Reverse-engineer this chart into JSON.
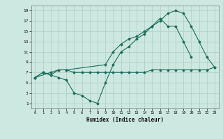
{
  "xlabel": "Humidex (Indice chaleur)",
  "bg_color": "#cde8e0",
  "grid_color": "#a8cfc4",
  "line_color": "#1a6b5a",
  "line1_x": [
    0,
    1,
    2,
    3,
    4,
    5,
    6,
    7,
    8,
    9,
    10,
    11,
    12,
    13,
    14,
    15,
    16,
    17,
    18,
    19,
    20,
    21,
    22,
    23
  ],
  "line1_y": [
    6,
    7,
    6.5,
    7.5,
    7.5,
    7,
    7,
    7,
    7,
    7,
    7,
    7,
    7,
    7,
    7,
    7.5,
    7.5,
    7.5,
    7.5,
    7.5,
    7.5,
    7.5,
    7.5,
    8
  ],
  "line2_x": [
    0,
    1,
    2,
    3,
    4,
    5,
    6,
    7,
    8,
    9,
    10,
    11,
    12,
    13,
    14,
    15,
    16,
    17,
    18,
    19,
    20
  ],
  "line2_y": [
    6,
    7,
    6.5,
    6,
    5.5,
    3,
    2.5,
    1.5,
    1,
    5,
    8.5,
    11,
    12,
    13.5,
    14.5,
    16,
    17.5,
    16,
    16,
    13,
    10
  ],
  "line3_x": [
    0,
    2,
    3,
    4,
    9,
    10,
    11,
    12,
    13,
    14,
    15,
    16,
    17,
    18,
    19,
    20,
    21,
    22,
    23
  ],
  "line3_y": [
    6,
    7,
    7.5,
    7.5,
    8.5,
    11,
    12.5,
    13.5,
    14,
    15,
    16,
    17,
    18.5,
    19,
    18.5,
    16,
    13,
    10,
    8
  ],
  "xlim": [
    -0.5,
    23.5
  ],
  "ylim": [
    0,
    20
  ],
  "yticks": [
    1,
    3,
    5,
    7,
    9,
    11,
    13,
    15,
    17,
    19
  ],
  "xticks": [
    0,
    1,
    2,
    3,
    4,
    5,
    6,
    7,
    8,
    9,
    10,
    11,
    12,
    13,
    14,
    15,
    16,
    17,
    18,
    19,
    20,
    21,
    22,
    23
  ]
}
